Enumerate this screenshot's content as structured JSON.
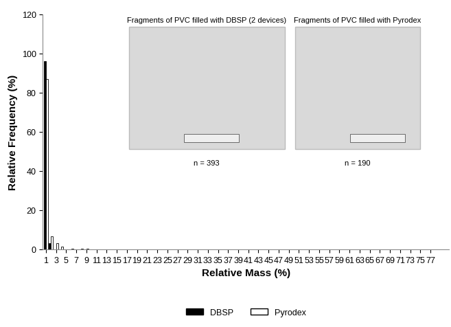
{
  "chart_data": {
    "type": "bar",
    "x_label": "Relative Mass (%)",
    "y_label": "Relative Frequency (%)",
    "categories": [
      "1",
      null,
      "3",
      null,
      "5",
      null,
      "7",
      null,
      "9",
      null,
      "11",
      null,
      "13",
      null,
      "15",
      null,
      "17",
      null,
      "19",
      null,
      "21",
      null,
      "23",
      null,
      "25",
      null,
      "27",
      null,
      "29",
      null,
      "31",
      null,
      "33",
      null,
      "35",
      null,
      "37",
      null,
      "39",
      null,
      "41",
      null,
      "43",
      null,
      "45",
      null,
      "47",
      null,
      "49",
      null,
      "51",
      null,
      "53",
      null,
      "55",
      null,
      "57",
      null,
      "59",
      null,
      "61",
      null,
      "63",
      null,
      "65",
      null,
      "67",
      null,
      "69",
      null,
      "71",
      null,
      "73",
      null,
      "75",
      null,
      "77",
      null,
      null,
      null
    ],
    "series": [
      {
        "name": "DBSP",
        "color": "#000000",
        "values": [
          96,
          3,
          0,
          0,
          0,
          0,
          0,
          0,
          0,
          0,
          0,
          0,
          0,
          0,
          0,
          0,
          0,
          0,
          0,
          0,
          0,
          0,
          0,
          0,
          0,
          0,
          0,
          0,
          0,
          0,
          0,
          0,
          0,
          0,
          0,
          0,
          0,
          0,
          0,
          0,
          0,
          0,
          0,
          0,
          0,
          0,
          0,
          0,
          0,
          0,
          0,
          0,
          0,
          0,
          0,
          0,
          0,
          0,
          0,
          0,
          0,
          0,
          0,
          0,
          0,
          0,
          0,
          0,
          0,
          0,
          0,
          0,
          0,
          0,
          0,
          0,
          0,
          0,
          0,
          0
        ]
      },
      {
        "name": "Pyrodex",
        "color": "#ffffff",
        "values": [
          87,
          6.5,
          3,
          1.5,
          0,
          0.5,
          0,
          0.5,
          0.5,
          0,
          0,
          0,
          0,
          0,
          0,
          0,
          0,
          0,
          0,
          0,
          0,
          0,
          0,
          0,
          0,
          0,
          0,
          0,
          0,
          0,
          0,
          0,
          0,
          0,
          0,
          0,
          0,
          0,
          0,
          0,
          0,
          0,
          0,
          0,
          0,
          0,
          0,
          0,
          0,
          0,
          0,
          0,
          0,
          0,
          0,
          0,
          0,
          0,
          0,
          0,
          0,
          0,
          0,
          0,
          0,
          0,
          0,
          0,
          0,
          0,
          0,
          0,
          0,
          0,
          0,
          0,
          0,
          0,
          0,
          0
        ]
      }
    ],
    "ylim": [
      0,
      120
    ],
    "yticks": [
      0,
      20,
      40,
      60,
      80,
      100,
      120
    ],
    "legend": "lower center",
    "annotations": [
      "Fragments of PVC filled with DBSP (2 devices)",
      "Fragments of PVC filled with Pyrodex",
      "n = 393",
      "n = 190"
    ]
  }
}
